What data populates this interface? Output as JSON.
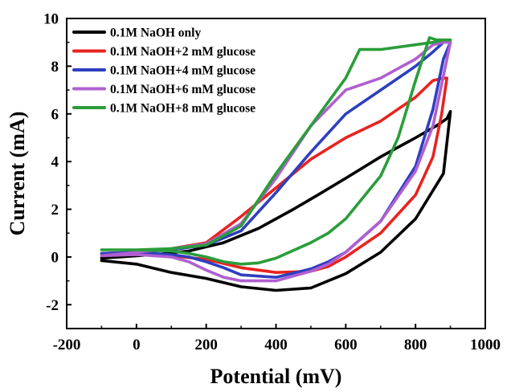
{
  "chart_data": {
    "type": "line",
    "title": "",
    "xlabel": "Potential (mV)",
    "ylabel": "Current (mA)",
    "xlim": [
      -200,
      1000
    ],
    "ylim": [
      -3,
      10
    ],
    "xticks": [
      -200,
      0,
      200,
      400,
      600,
      800,
      1000
    ],
    "yticks": [
      -2,
      0,
      2,
      4,
      6,
      8,
      10
    ],
    "grid": false,
    "legend_position": "top-left",
    "series": [
      {
        "name": "0.1M NaOH only",
        "color": "#000000",
        "x": [
          -100,
          0,
          100,
          200,
          300,
          400,
          500,
          600,
          700,
          800,
          880,
          900,
          890,
          860,
          800,
          700,
          600,
          520,
          450,
          350,
          250,
          150,
          50,
          -50,
          -100
        ],
        "y": [
          -0.15,
          -0.3,
          -0.65,
          -0.9,
          -1.25,
          -1.4,
          -1.3,
          -0.7,
          0.2,
          1.6,
          3.5,
          6.1,
          5.8,
          5.5,
          5.0,
          4.2,
          3.3,
          2.6,
          2.0,
          1.2,
          0.6,
          0.25,
          0.1,
          0.0,
          -0.05
        ]
      },
      {
        "name": "0.1M NaOH+2 mM glucose",
        "color": "#e8231f",
        "x": [
          -100,
          0,
          100,
          200,
          300,
          400,
          500,
          550,
          600,
          700,
          800,
          850,
          875,
          890,
          880,
          850,
          800,
          700,
          600,
          500,
          400,
          300,
          200,
          100,
          0,
          -100
        ],
        "y": [
          0.15,
          0.1,
          0.05,
          -0.1,
          -0.45,
          -0.65,
          -0.6,
          -0.4,
          0.0,
          1.0,
          2.6,
          4.2,
          6.0,
          7.5,
          7.5,
          7.4,
          6.7,
          5.7,
          5.0,
          4.1,
          2.9,
          1.7,
          0.6,
          0.35,
          0.2,
          0.15
        ]
      },
      {
        "name": "0.1M NaOH+4 mM glucose",
        "color": "#2e3fbf",
        "x": [
          -100,
          0,
          100,
          150,
          200,
          250,
          300,
          400,
          500,
          550,
          600,
          700,
          800,
          850,
          880,
          900,
          880,
          850,
          800,
          700,
          600,
          500,
          400,
          300,
          200,
          150,
          100,
          0,
          -100
        ],
        "y": [
          0.15,
          0.2,
          0.1,
          0.0,
          -0.2,
          -0.45,
          -0.75,
          -0.85,
          -0.5,
          -0.2,
          0.2,
          1.5,
          3.8,
          6.2,
          8.3,
          9.0,
          9.0,
          8.6,
          8.0,
          7.0,
          6.0,
          4.4,
          2.7,
          1.1,
          0.5,
          0.4,
          0.3,
          0.2,
          0.15
        ]
      },
      {
        "name": "0.1M NaOH+6 mM glucose",
        "color": "#b05fd0",
        "x": [
          -100,
          0,
          100,
          150,
          200,
          250,
          300,
          400,
          500,
          550,
          600,
          700,
          800,
          850,
          880,
          900,
          880,
          850,
          800,
          700,
          600,
          500,
          400,
          300,
          200,
          150,
          100,
          0,
          -100
        ],
        "y": [
          0.05,
          0.1,
          0.0,
          -0.2,
          -0.55,
          -0.85,
          -1.0,
          -1.0,
          -0.6,
          -0.3,
          0.2,
          1.5,
          3.6,
          5.5,
          7.6,
          9.0,
          9.0,
          8.9,
          8.3,
          7.5,
          7.0,
          5.5,
          3.3,
          1.4,
          0.55,
          0.45,
          0.35,
          0.2,
          0.05
        ]
      },
      {
        "name": "0.1M NaOH+8 mM glucose",
        "color": "#2a9d3a",
        "x": [
          -100,
          0,
          100,
          150,
          200,
          250,
          300,
          350,
          400,
          500,
          550,
          600,
          700,
          750,
          800,
          840,
          860,
          900,
          880,
          850,
          800,
          700,
          640,
          600,
          500,
          400,
          300,
          200,
          100,
          0,
          -100
        ],
        "y": [
          0.3,
          0.3,
          0.25,
          0.15,
          0.0,
          -0.2,
          -0.3,
          -0.25,
          -0.05,
          0.6,
          1.0,
          1.6,
          3.4,
          5.0,
          7.4,
          9.2,
          9.1,
          9.1,
          9.1,
          9.0,
          8.9,
          8.7,
          8.7,
          7.5,
          5.5,
          3.5,
          1.3,
          0.5,
          0.35,
          0.3,
          0.3
        ]
      }
    ]
  }
}
